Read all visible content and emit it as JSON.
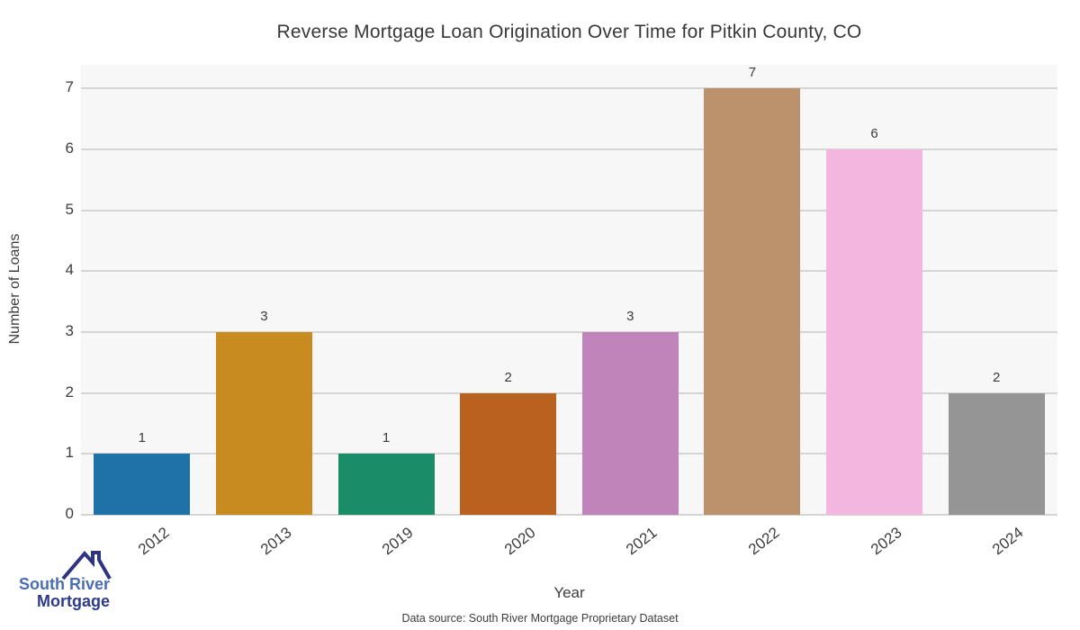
{
  "title": "Reverse Mortgage Loan Origination Over Time for Pitkin County, CO",
  "chart_data": {
    "type": "bar",
    "categories": [
      "2012",
      "2013",
      "2019",
      "2020",
      "2021",
      "2022",
      "2023",
      "2024"
    ],
    "values": [
      1,
      3,
      1,
      2,
      3,
      7,
      6,
      2
    ],
    "bar_colors": [
      "#1e72a6",
      "#c78b1f",
      "#1a8c68",
      "#b9611e",
      "#c084bb",
      "#bb926b",
      "#f3b7df",
      "#959595"
    ],
    "title": "Reverse Mortgage Loan Origination Over Time for Pitkin County, CO",
    "xlabel": "Year",
    "ylabel": "Number of Loans",
    "ylim": [
      0,
      7.39
    ],
    "yticks": [
      0,
      1,
      2,
      3,
      4,
      5,
      6,
      7
    ],
    "grid": true,
    "legend": "none",
    "plot_background": "#f7f7f7",
    "grid_color": "#d5d5d5",
    "value_labels_shown": true
  },
  "footer": {
    "source_text": "Data source: South River Mortgage Proprietary Dataset"
  },
  "logo": {
    "line1": "South River",
    "line2": "Mortgage",
    "line1_color": "#4a6db4",
    "line2_color": "#2e3b8a",
    "roof_color": "#2d3480",
    "roof_icon": "house-roof-icon"
  }
}
